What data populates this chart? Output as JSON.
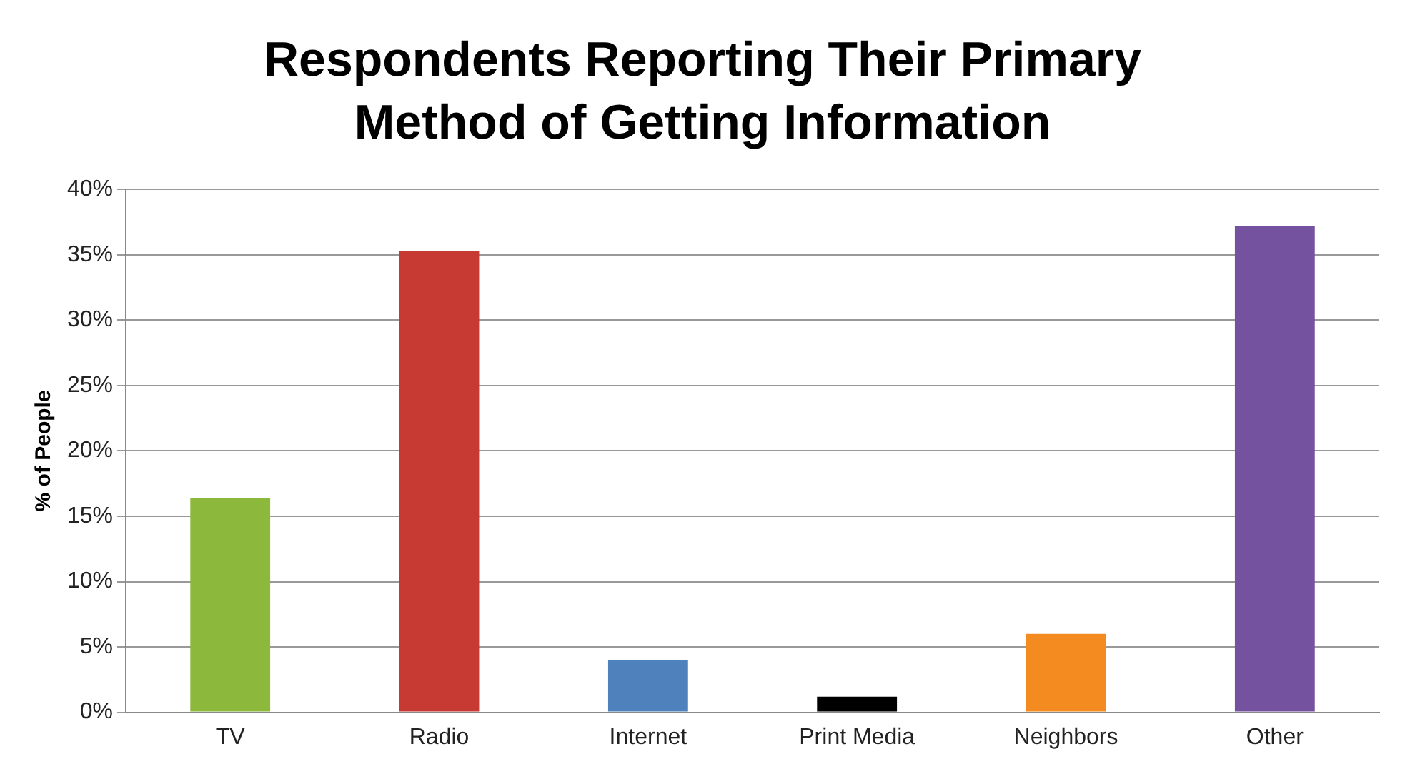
{
  "chart_data": {
    "type": "bar",
    "title": "Respondents Reporting Their Primary Method of Getting Information",
    "ylabel": "% of People",
    "categories": [
      "TV",
      "Radio",
      "Internet",
      "Print Media",
      "Neighbors",
      "Other"
    ],
    "values": [
      16.4,
      35.3,
      4.0,
      1.2,
      6.0,
      37.2
    ],
    "colors": [
      "#8cb83c",
      "#c63a33",
      "#4f81bd",
      "#000000",
      "#f38b20",
      "#7452a0"
    ],
    "ylim": [
      0,
      40
    ],
    "yticks": [
      {
        "value": 0,
        "label": "0%"
      },
      {
        "value": 5,
        "label": "5%"
      },
      {
        "value": 10,
        "label": "10%"
      },
      {
        "value": 15,
        "label": "15%"
      },
      {
        "value": 20,
        "label": "20%"
      },
      {
        "value": 25,
        "label": "25%"
      },
      {
        "value": 30,
        "label": "30%"
      },
      {
        "value": 35,
        "label": "35%"
      },
      {
        "value": 40,
        "label": "40%"
      }
    ],
    "grid": "y",
    "legend": false
  }
}
